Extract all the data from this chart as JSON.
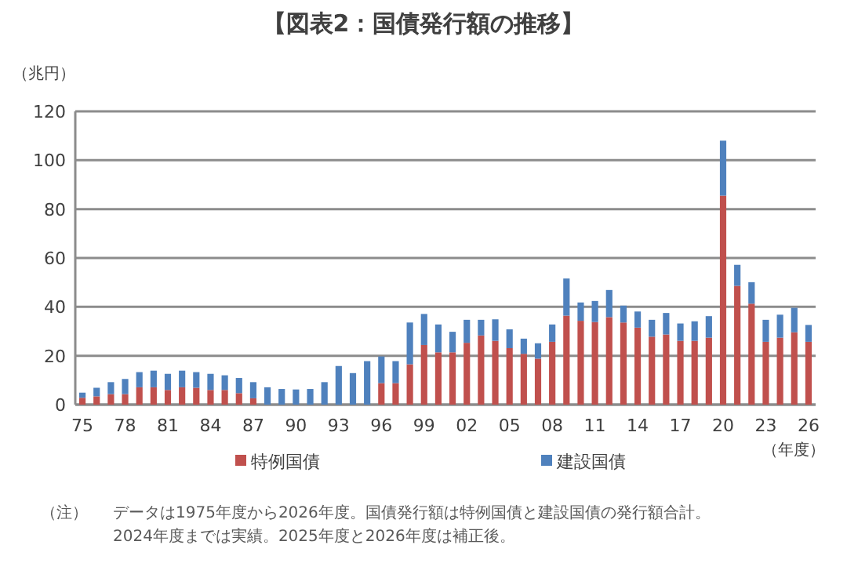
{
  "chart_data": {
    "type": "bar",
    "stacked": true,
    "title": "【図表2：国債発行額の推移】",
    "ylabel": "（兆円）",
    "xlabel": "（年度）",
    "categories": [
      "75",
      null,
      null,
      "78",
      null,
      null,
      "81",
      null,
      null,
      "84",
      null,
      null,
      "87",
      null,
      null,
      "90",
      null,
      null,
      "93",
      null,
      null,
      "96",
      null,
      null,
      "99",
      null,
      null,
      "02",
      null,
      null,
      "05",
      null,
      null,
      "08",
      null,
      null,
      "11",
      null,
      null,
      "14",
      null,
      null,
      "17",
      null,
      null,
      "20",
      null,
      null,
      "23",
      null,
      null,
      "26"
    ],
    "series": [
      {
        "name": "特例国債",
        "color": "#c0504d",
        "values": [
          2.8,
          3.4,
          4.3,
          4.3,
          7.1,
          7.1,
          6.0,
          7.1,
          6.9,
          6.0,
          6.0,
          4.7,
          2.6,
          0,
          0,
          0,
          0,
          0,
          0,
          0,
          0,
          8.8,
          8.8,
          16.5,
          24.4,
          21.4,
          21.4,
          25.3,
          28.3,
          26.1,
          23.1,
          20.8,
          18.8,
          25.7,
          36.4,
          34.3,
          33.8,
          35.8,
          33.6,
          31.5,
          27.8,
          28.7,
          26.1,
          26.1,
          27.4,
          85.5,
          48.6,
          41.3,
          25.7,
          27.4,
          29.6,
          25.7
        ]
      },
      {
        "name": "建設国債",
        "color": "#4f81bd",
        "values": [
          2.1,
          3.5,
          4.9,
          6.2,
          6.2,
          6.8,
          6.6,
          6.8,
          6.4,
          6.6,
          6.0,
          6.2,
          6.6,
          7.1,
          6.4,
          6.2,
          6.4,
          9.2,
          15.8,
          12.9,
          17.8,
          10.9,
          9.0,
          17.1,
          12.7,
          11.4,
          8.4,
          9.4,
          6.4,
          8.8,
          7.7,
          6.2,
          6.3,
          7.1,
          15.2,
          7.5,
          8.6,
          11.1,
          6.9,
          6.6,
          6.9,
          8.8,
          7.1,
          8.0,
          8.8,
          22.5,
          8.6,
          8.8,
          9.0,
          9.4,
          10.0,
          6.9
        ]
      }
    ],
    "ylim": [
      0,
      120
    ],
    "yticks": [
      0,
      20,
      40,
      60,
      80,
      100,
      120
    ],
    "grid": "y",
    "legend": "bottom",
    "annotations": [
      "（注）",
      "データは1975年度から2026年度。国債発行額は特例国債と建設国債の発行額合計。",
      "2024年度までは実績。2025年度と2026年度は補正後。"
    ]
  }
}
